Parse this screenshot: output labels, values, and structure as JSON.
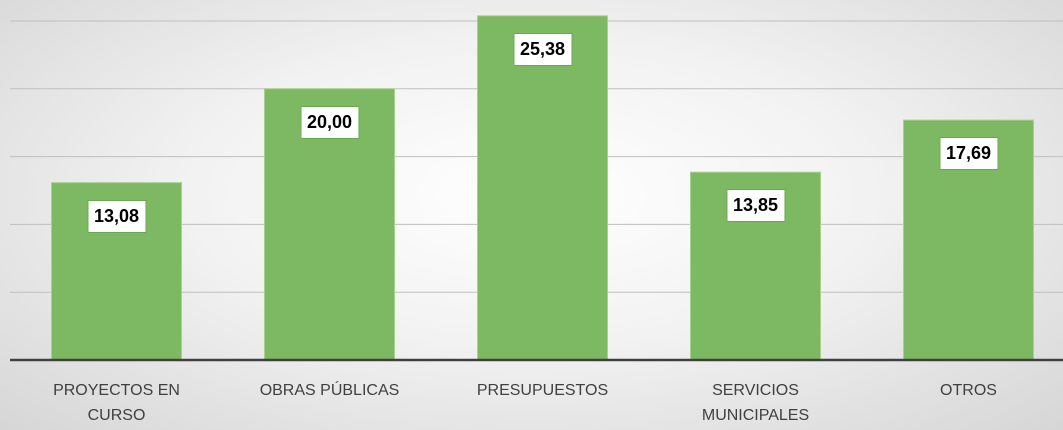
{
  "chart_data": {
    "type": "bar",
    "categories": [
      "PROYECTOS EN CURSO",
      "OBRAS PÚBLICAS",
      "PRESUPUESTOS",
      "SERVICIOS MUNICIPALES",
      "OTROS"
    ],
    "values": [
      13.08,
      20.0,
      25.38,
      13.85,
      17.69
    ],
    "value_labels": [
      "13,08",
      "20,00",
      "25,38",
      "13,85",
      "17,69"
    ],
    "color": "#7db962",
    "ylim": [
      0,
      26
    ],
    "yticks": [
      0,
      5,
      10,
      15,
      20,
      25
    ],
    "grid": true
  }
}
